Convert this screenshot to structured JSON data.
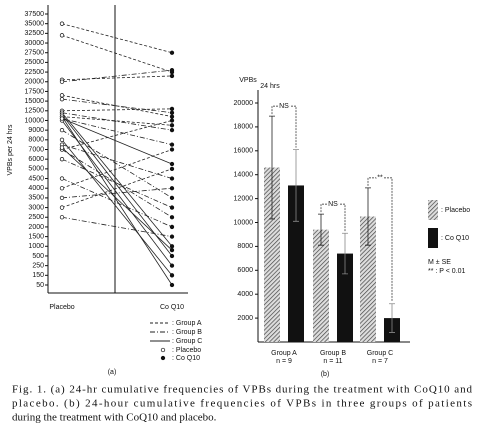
{
  "chart_data": [
    {
      "type": "paired-line",
      "panel_label": "(a)",
      "y_label": "VPBs per 24 hrs",
      "categories": [
        "Placebo",
        "Co Q10"
      ],
      "yscale": "tick-spaced",
      "ylim": [
        50,
        37500
      ],
      "yticks": [
        37500,
        35000,
        32500,
        30000,
        27500,
        25000,
        22500,
        20000,
        17500,
        15000,
        12500,
        10000,
        9000,
        8000,
        7000,
        6000,
        5000,
        4500,
        4000,
        3500,
        3000,
        2500,
        2000,
        1500,
        1000,
        500,
        250,
        150,
        50
      ],
      "groups": [
        {
          "name": ": Group A",
          "dash": "3,2",
          "values": [
            [
              35000,
              27500
            ],
            [
              32000,
              22500
            ],
            [
              20500,
              21500
            ],
            [
              16500,
              11000
            ],
            [
              12500,
              13000
            ],
            [
              11000,
              9500
            ],
            [
              7000,
              10000
            ],
            [
              4000,
              7000
            ],
            [
              3000,
              5000
            ]
          ]
        },
        {
          "name": ": Group B",
          "dash": "5,2,1,2",
          "values": [
            [
              20000,
              23000
            ],
            [
              15500,
              12000
            ],
            [
              12000,
              9000
            ],
            [
              10500,
              7500
            ],
            [
              9000,
              3500
            ],
            [
              7500,
              4500
            ],
            [
              6000,
              3000
            ],
            [
              4500,
              2000
            ],
            [
              3500,
              4000
            ],
            [
              2500,
              1500
            ],
            [
              7000,
              2500
            ]
          ]
        },
        {
          "name": ": Group C",
          "dash": "none",
          "values": [
            [
              12000,
              1000
            ],
            [
              11500,
              500
            ],
            [
              10000,
              250
            ],
            [
              8000,
              150
            ],
            [
              7200,
              800
            ],
            [
              11000,
              50
            ],
            [
              10500,
              5500
            ]
          ]
        }
      ],
      "markers": [
        {
          "name": ": Placebo",
          "fill": "#fff"
        },
        {
          "name": ": Co Q10",
          "fill": "#111"
        }
      ]
    },
    {
      "type": "bar-error",
      "panel_label": "(b)",
      "y_label": "VPBs",
      "y_label_unit": "24 hrs",
      "categories": [
        "Group A",
        "Group B",
        "Group C"
      ],
      "category_notes": [
        "n = 9",
        "n = 11",
        "n = 7"
      ],
      "ylim": [
        0,
        20000
      ],
      "yticks": [
        2000,
        4000,
        6000,
        8000,
        10000,
        12000,
        14000,
        16000,
        18000,
        20000
      ],
      "series": [
        {
          "name": ": Placebo",
          "pattern": "hatch",
          "color": "#555",
          "values": [
            14600,
            9400,
            10500
          ],
          "errors": [
            4300,
            1300,
            2400
          ]
        },
        {
          "name": ": Co Q10",
          "pattern": "solid",
          "color": "#111",
          "values": [
            13100,
            7400,
            2000
          ],
          "errors": [
            3000,
            1700,
            1200
          ]
        }
      ],
      "annotations": [
        "NS",
        "NS",
        "**"
      ],
      "notes": [
        "M ± SE",
        "** : P < 0.01"
      ]
    }
  ],
  "caption": {
    "lines": [
      "Fig. 1.  (a) 24-hr cumulative frequencies of VPBs during the treatment with CoQ10 and",
      "placebo. (b) 24-hour cumulative frequencies of VPBs in three groups of patients",
      "during the treatment with CoQ10 and placebo."
    ]
  }
}
